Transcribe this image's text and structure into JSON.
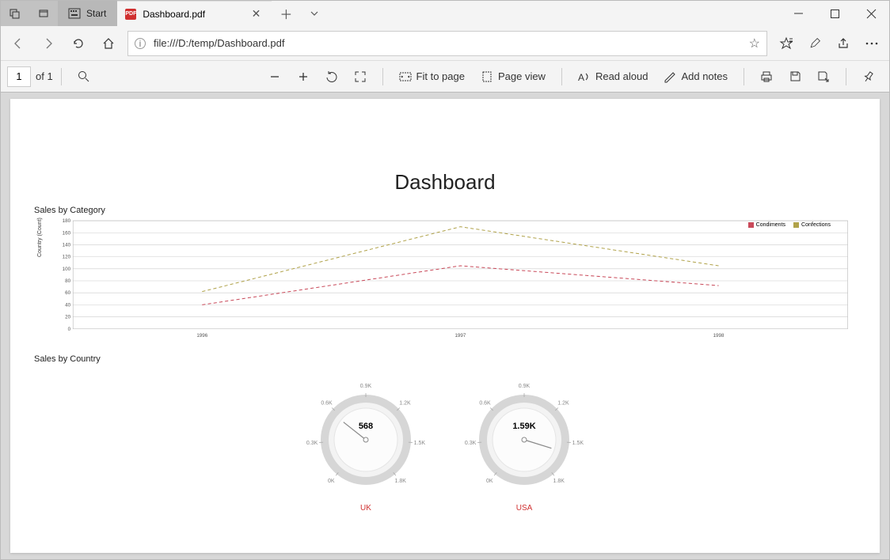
{
  "window": {
    "taskbar_start": "Start",
    "tab_title": "Dashboard.pdf",
    "url": "file:///D:/temp/Dashboard.pdf"
  },
  "pdf_toolbar": {
    "page_current": "1",
    "page_total": "of 1",
    "fit": "Fit to page",
    "pageview": "Page view",
    "read": "Read aloud",
    "notes": "Add notes"
  },
  "dashboard": {
    "title": "Dashboard",
    "section1": "Sales by Category",
    "section2": "Sales by Country",
    "ylabel": "Country (Count)",
    "legend": [
      {
        "name": "Condiments",
        "color": "#c94a5a"
      },
      {
        "name": "Confections",
        "color": "#b0a24a"
      }
    ],
    "line_chart": {
      "type": "line",
      "x_labels": [
        "1996",
        "1997",
        "1998"
      ],
      "ylim": [
        0,
        180
      ],
      "ytick_step": 20,
      "grid_color": "#cccccc",
      "series": [
        {
          "name": "Condiments",
          "color": "#c94a5a",
          "dash": "4 3",
          "values": [
            40,
            105,
            72
          ]
        },
        {
          "name": "Confections",
          "color": "#b0a24a",
          "dash": "4 3",
          "values": [
            62,
            170,
            105
          ]
        }
      ]
    },
    "gauges": [
      {
        "label": "UK",
        "value": 568,
        "display": "568",
        "min": 0,
        "max": 1800,
        "ticks": [
          {
            "v": 0,
            "label": "0K"
          },
          {
            "v": 300,
            "label": "0.3K"
          },
          {
            "v": 600,
            "label": "0.6K"
          },
          {
            "v": 900,
            "label": "0.9K"
          },
          {
            "v": 1200,
            "label": "1.2K"
          },
          {
            "v": 1500,
            "label": "1.5K"
          },
          {
            "v": 1800,
            "label": "1.8K"
          }
        ],
        "ring_color": "#d6d6d6",
        "needle_color": "#888888"
      },
      {
        "label": "USA",
        "value": 1590,
        "display": "1.59K",
        "min": 0,
        "max": 1800,
        "ticks": [
          {
            "v": 0,
            "label": "0K"
          },
          {
            "v": 300,
            "label": "0.3K"
          },
          {
            "v": 600,
            "label": "0.6K"
          },
          {
            "v": 900,
            "label": "0.9K"
          },
          {
            "v": 1200,
            "label": "1.2K"
          },
          {
            "v": 1500,
            "label": "1.5K"
          },
          {
            "v": 1800,
            "label": "1.8K"
          }
        ],
        "ring_color": "#d6d6d6",
        "needle_color": "#888888"
      }
    ]
  }
}
